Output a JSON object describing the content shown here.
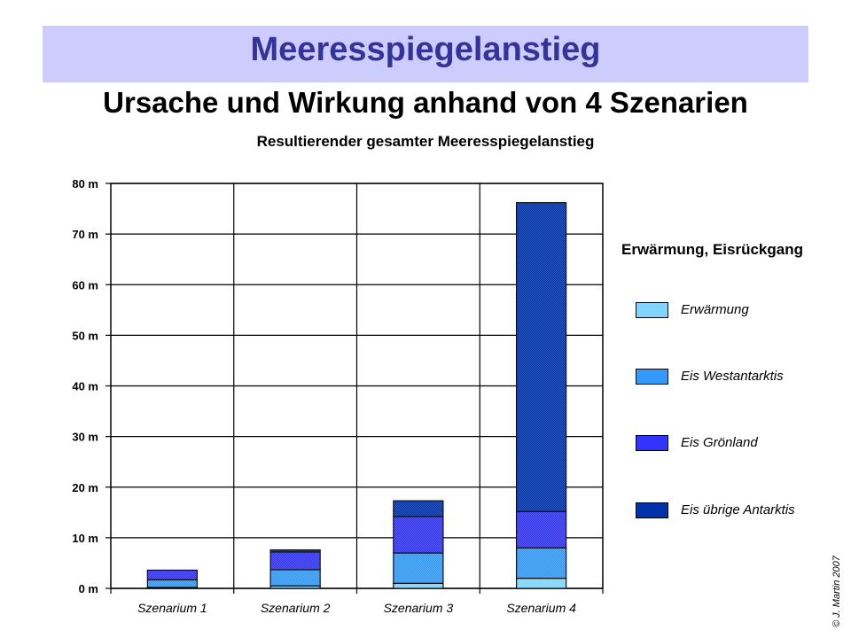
{
  "header": {
    "title": "Meeresspiegelanstieg",
    "subtitle": "Ursache und Wirkung anhand von 4 Szenarien",
    "banner_color": "#ccccff",
    "title_color": "#333399"
  },
  "legend": {
    "title": "Erwärmung, Eisrückgang",
    "items": [
      {
        "label": "Erwärmung",
        "color": "#80d4ff"
      },
      {
        "label": "Eis Westantarktis",
        "color": "#3399ff"
      },
      {
        "label": "Eis Grönland",
        "color": "#3333ff"
      },
      {
        "label": "Eis übrige Antarktis",
        "color": "#0033aa"
      }
    ]
  },
  "copyright": "© J. Martin 2007",
  "chart_data": {
    "type": "bar",
    "stacked": true,
    "title": "Resultierender gesamter Meeresspiegelanstieg",
    "xlabel": "",
    "ylabel": "",
    "categories": [
      "Szenarium 1",
      "Szenarium 2",
      "Szenarium 3",
      "Szenarium 4"
    ],
    "series": [
      {
        "name": "Erwärmung",
        "color": "#80d4ff",
        "values": [
          0.2,
          0.5,
          1.0,
          2.0
        ]
      },
      {
        "name": "Eis Westantarktis",
        "color": "#3399ff",
        "values": [
          1.5,
          3.2,
          6.0,
          6.0
        ]
      },
      {
        "name": "Eis Grönland",
        "color": "#3333ff",
        "values": [
          1.9,
          3.5,
          7.2,
          7.2
        ]
      },
      {
        "name": "Eis übrige Antarktis",
        "color": "#0033aa",
        "values": [
          0.0,
          0.4,
          3.1,
          61.0
        ]
      }
    ],
    "totals": [
      3.6,
      7.6,
      17.3,
      76.2
    ],
    "ylim": [
      0,
      80
    ],
    "yticks": [
      0,
      10,
      20,
      30,
      40,
      50,
      60,
      70,
      80
    ],
    "ytick_labels": [
      "0 m",
      "10 m",
      "20 m",
      "30 m",
      "40 m",
      "50 m",
      "60 m",
      "70 m",
      "80 m"
    ],
    "grid": true,
    "legend_position": "right"
  }
}
